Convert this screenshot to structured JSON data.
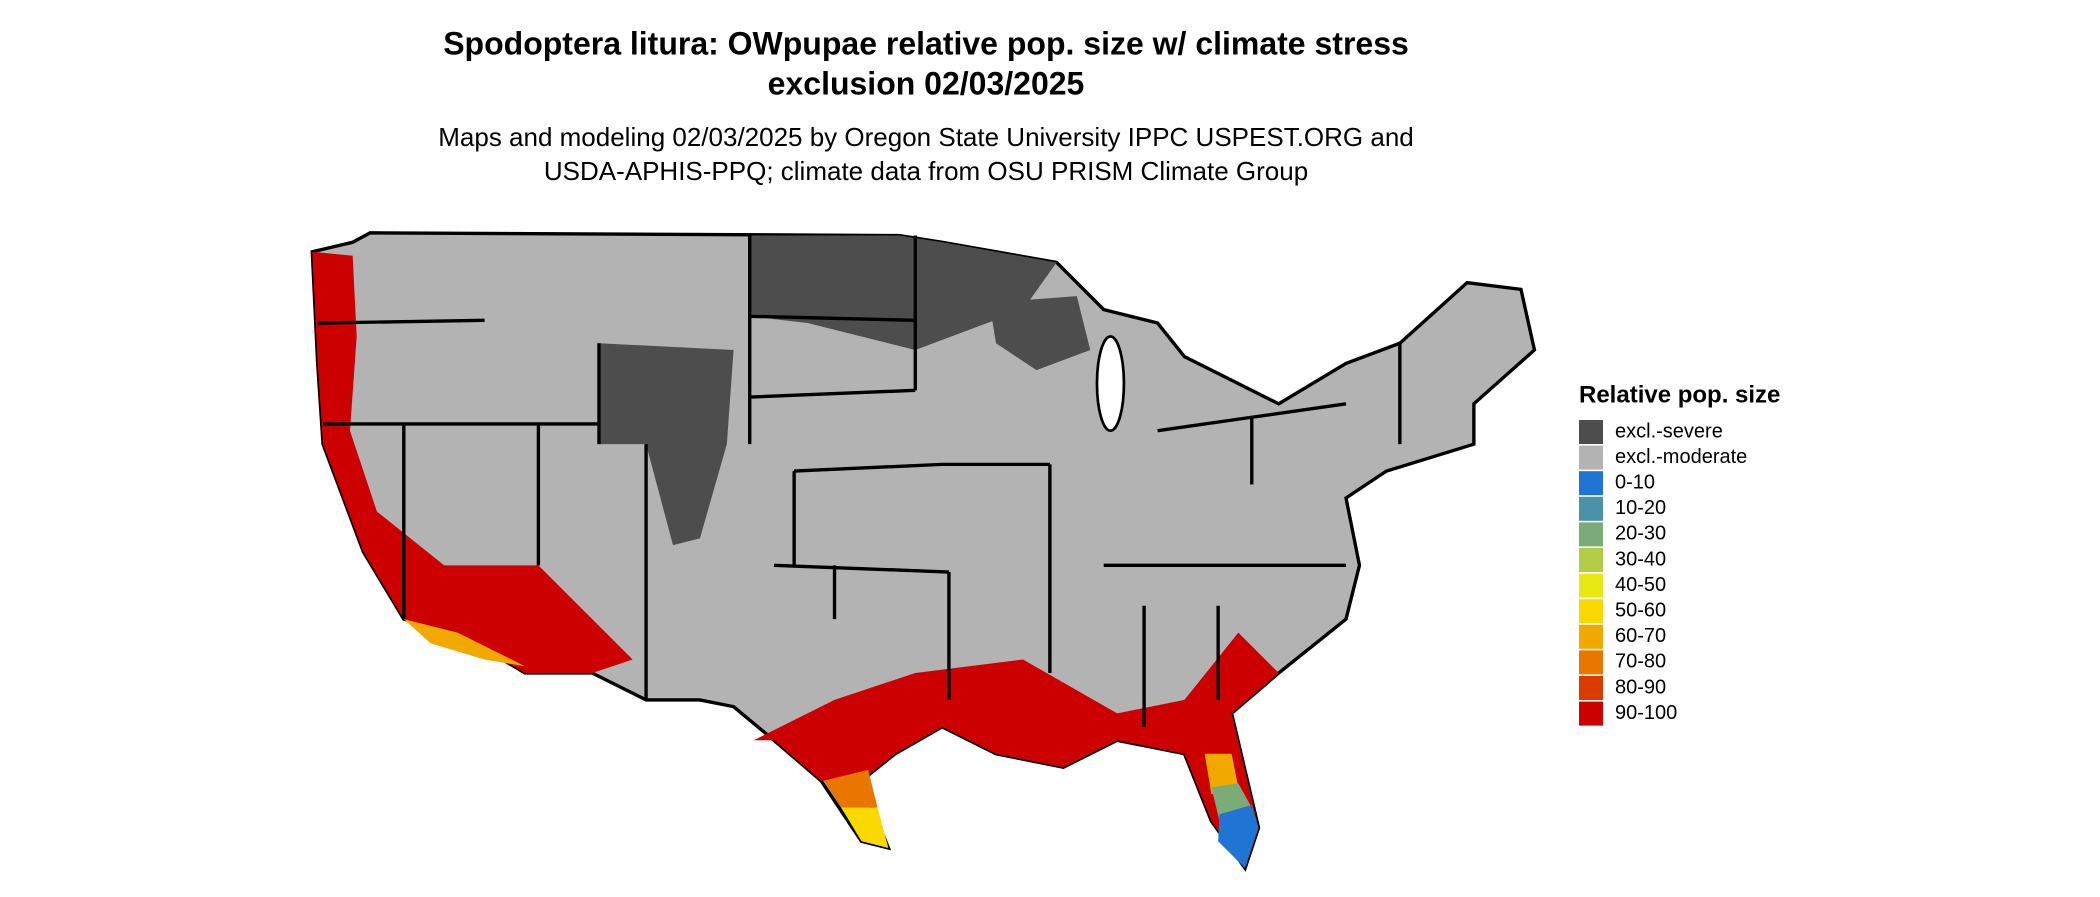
{
  "map": {
    "title_lines": [
      "Spodoptera litura: OWpupae relative pop. size w/ climate stress",
      "exclusion 02/03/2025"
    ],
    "subtitle_lines": [
      "Maps and modeling 02/03/2025 by Oregon State University IPPC USPEST.ORG and",
      "USDA-APHIS-PPQ; climate data from OSU PRISM Climate Group"
    ],
    "legend": {
      "title": "Relative pop. size",
      "items": [
        {
          "label": "excl.-severe",
          "color": "#4d4d4d"
        },
        {
          "label": "excl.-moderate",
          "color": "#b3b3b3"
        },
        {
          "label": "0-10",
          "color": "#1f74d4"
        },
        {
          "label": "10-20",
          "color": "#4a92a8"
        },
        {
          "label": "20-30",
          "color": "#7bab76"
        },
        {
          "label": "30-40",
          "color": "#b3cc45"
        },
        {
          "label": "40-50",
          "color": "#e6ea12"
        },
        {
          "label": "50-60",
          "color": "#f9d900"
        },
        {
          "label": "60-70",
          "color": "#f1a900"
        },
        {
          "label": "70-80",
          "color": "#e87600"
        },
        {
          "label": "80-90",
          "color": "#dc3b00"
        },
        {
          "label": "90-100",
          "color": "#cc0000"
        }
      ]
    }
  }
}
